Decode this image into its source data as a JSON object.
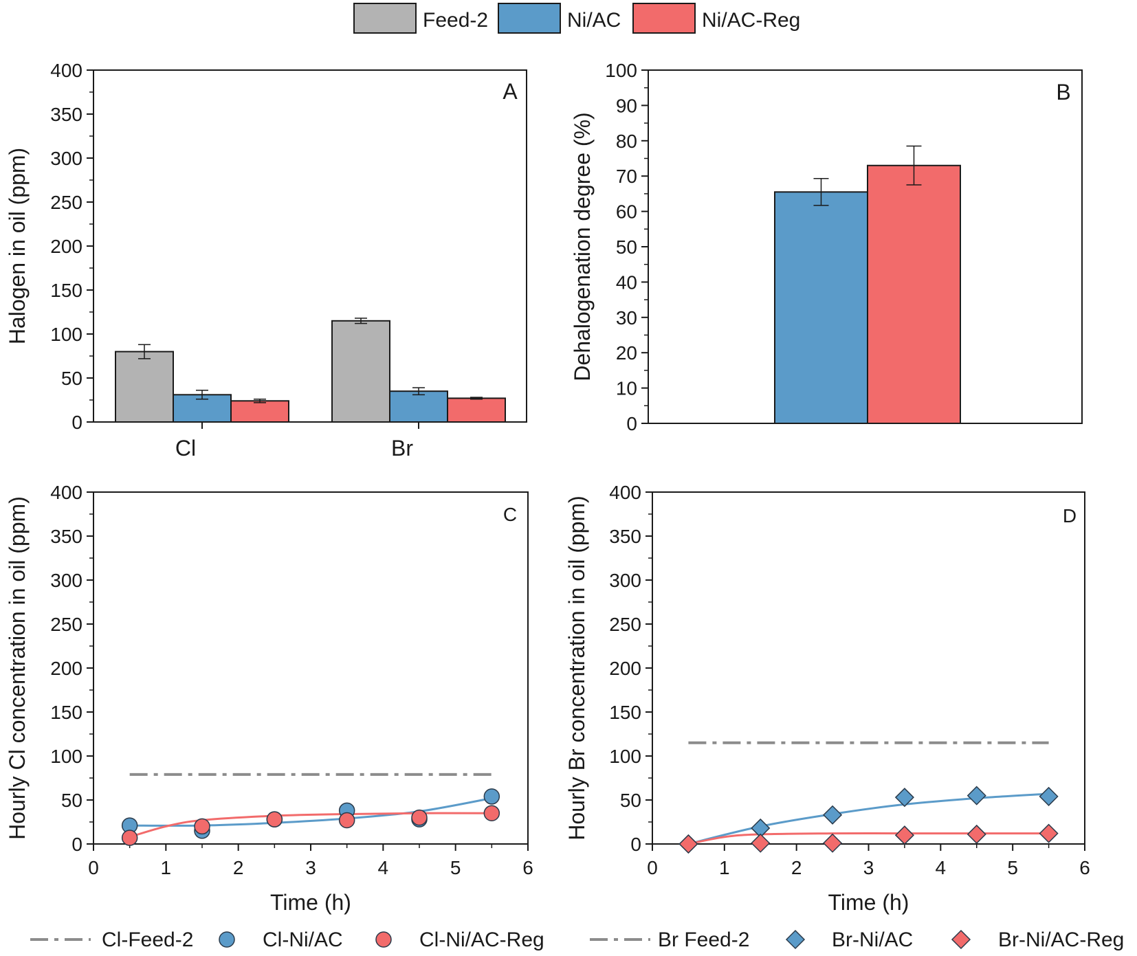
{
  "colors": {
    "feed": "#b3b3b3",
    "ni": "#5b9bc9",
    "reg": "#f26b6b",
    "feedline": "#8c8c8c",
    "axis": "#1a1a1a"
  },
  "top_legend": {
    "items": [
      {
        "label": "Feed-2",
        "color": "#b3b3b3"
      },
      {
        "label": "Ni/AC",
        "color": "#5b9bc9"
      },
      {
        "label": "Ni/AC-Reg",
        "color": "#f26b6b"
      }
    ]
  },
  "chart_data": [
    {
      "panel": "A",
      "type": "bar",
      "ylabel": "Halogen in oil (ppm)",
      "ylim": [
        0,
        400
      ],
      "yticks": [
        0,
        50,
        100,
        150,
        200,
        250,
        300,
        350,
        400
      ],
      "categories": [
        "Cl",
        "Br"
      ],
      "series": [
        {
          "name": "Feed-2",
          "values": [
            80,
            115
          ],
          "errors": [
            8,
            3
          ]
        },
        {
          "name": "Ni/AC",
          "values": [
            31,
            35
          ],
          "errors": [
            5,
            4
          ]
        },
        {
          "name": "Ni/AC-Reg",
          "values": [
            24,
            27
          ],
          "errors": [
            2,
            1
          ]
        }
      ]
    },
    {
      "panel": "B",
      "type": "bar",
      "ylabel": "Dehalogenation degree (%)",
      "ylim": [
        0,
        100
      ],
      "yticks": [
        0,
        10,
        20,
        30,
        40,
        50,
        60,
        70,
        80,
        90,
        100
      ],
      "series": [
        {
          "name": "Ni/AC",
          "values": [
            65.5
          ],
          "errors": [
            3.8
          ]
        },
        {
          "name": "Ni/AC-Reg",
          "values": [
            73
          ],
          "errors": [
            5.5
          ]
        }
      ]
    },
    {
      "panel": "C",
      "type": "scatter",
      "ylabel": "Hourly Cl concentration in oil (ppm)",
      "xlabel": "Time (h)",
      "xlim": [
        0,
        6
      ],
      "ylim": [
        0,
        400
      ],
      "xticks": [
        0,
        1,
        2,
        3,
        4,
        5,
        6
      ],
      "yticks": [
        0,
        50,
        100,
        150,
        200,
        250,
        300,
        350,
        400
      ],
      "feed_line": {
        "name": "Cl-Feed-2",
        "y": 79,
        "x": [
          0.5,
          5.5
        ]
      },
      "series": [
        {
          "name": "Cl-Ni/AC",
          "x": [
            0.5,
            1.5,
            2.5,
            3.5,
            4.5,
            5.5
          ],
          "y": [
            21,
            15,
            28,
            38,
            28,
            54
          ],
          "fit": [
            [
              0.5,
              21
            ],
            [
              1.5,
              21
            ],
            [
              2.5,
              24
            ],
            [
              3.5,
              29
            ],
            [
              4.5,
              37
            ],
            [
              5.5,
              52
            ]
          ]
        },
        {
          "name": "Cl-Ni/AC-Reg",
          "x": [
            0.5,
            1.5,
            2.5,
            3.5,
            4.5,
            5.5
          ],
          "y": [
            7,
            20,
            28,
            27,
            30,
            35
          ],
          "fit": [
            [
              0.5,
              8
            ],
            [
              1,
              20
            ],
            [
              1.5,
              27
            ],
            [
              2.5,
              32
            ],
            [
              3.5,
              34
            ],
            [
              4.5,
              35
            ],
            [
              5.5,
              35
            ]
          ]
        }
      ]
    },
    {
      "panel": "D",
      "type": "scatter",
      "ylabel": "Hourly Br concentration in oil (ppm)",
      "xlabel": "Time (h)",
      "xlim": [
        0,
        6
      ],
      "ylim": [
        0,
        400
      ],
      "xticks": [
        0,
        1,
        2,
        3,
        4,
        5,
        6
      ],
      "yticks": [
        0,
        50,
        100,
        150,
        200,
        250,
        300,
        350,
        400
      ],
      "feed_line": {
        "name": "Br Feed-2",
        "y": 115,
        "x": [
          0.5,
          5.5
        ]
      },
      "series": [
        {
          "name": "Br-Ni/AC",
          "x": [
            0.5,
            1.5,
            2.5,
            3.5,
            4.5,
            5.5
          ],
          "y": [
            0,
            18,
            33,
            53,
            55,
            54
          ],
          "fit": [
            [
              0.5,
              0
            ],
            [
              1.5,
              20
            ],
            [
              2.5,
              34
            ],
            [
              3.5,
              45
            ],
            [
              4.5,
              52
            ],
            [
              5.5,
              57
            ]
          ]
        },
        {
          "name": "Br-Ni/AC-Reg",
          "x": [
            0.5,
            1.5,
            2.5,
            3.5,
            4.5,
            5.5
          ],
          "y": [
            0,
            1,
            1,
            10,
            11,
            12
          ],
          "fit": [
            [
              0.5,
              0
            ],
            [
              1,
              8
            ],
            [
              1.5,
              11
            ],
            [
              2.5,
              12
            ],
            [
              3.5,
              12
            ],
            [
              4.5,
              12
            ],
            [
              5.5,
              12
            ]
          ]
        }
      ]
    }
  ],
  "bottom_legend": {
    "items": [
      {
        "label": "Cl-Feed-2",
        "kind": "dashline"
      },
      {
        "label": "Cl-Ni/AC",
        "kind": "circle",
        "color": "#5b9bc9"
      },
      {
        "label": "Cl-Ni/AC-Reg",
        "kind": "circle",
        "color": "#f26b6b"
      },
      {
        "label": "Br Feed-2",
        "kind": "dashline"
      },
      {
        "label": "Br-Ni/AC",
        "kind": "diamond",
        "color": "#5b9bc9"
      },
      {
        "label": "Br-Ni/AC-Reg",
        "kind": "diamond",
        "color": "#f26b6b"
      }
    ]
  }
}
